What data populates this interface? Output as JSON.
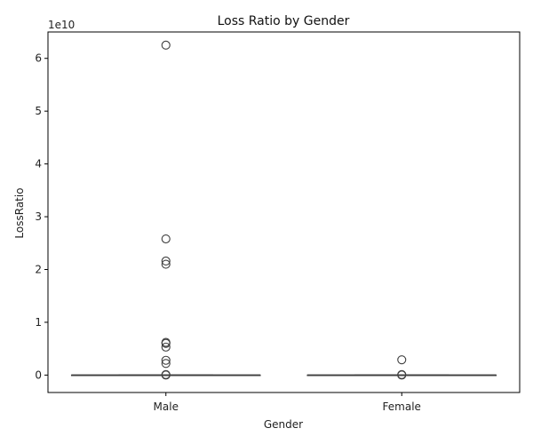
{
  "chart_data": {
    "type": "box",
    "title": "Loss Ratio by Gender",
    "xlabel": "Gender",
    "ylabel": "LossRatio",
    "offset_text": "1e10",
    "scale": 10000000000,
    "categories": [
      "Male",
      "Female"
    ],
    "ylim": [
      -0.33,
      6.5
    ],
    "y_ticks": [
      0,
      1,
      2,
      3,
      4,
      5,
      6
    ],
    "grid": false,
    "boxes": [
      {
        "category": "Male",
        "q1": 0,
        "median": 0,
        "q3": 0,
        "whisker_low": 0,
        "whisker_high": 0,
        "outliers": [
          6.25,
          2.58,
          2.16,
          2.1,
          0.62,
          0.6,
          0.53,
          0.28,
          0.22,
          0.01,
          0.0
        ]
      },
      {
        "category": "Female",
        "q1": 0,
        "median": 0,
        "q3": 0,
        "whisker_low": 0,
        "whisker_high": 0,
        "outliers": [
          0.29,
          0.01,
          0.0
        ]
      }
    ],
    "colors": {
      "line": "#3f3f3f",
      "axis": "#000000"
    }
  }
}
